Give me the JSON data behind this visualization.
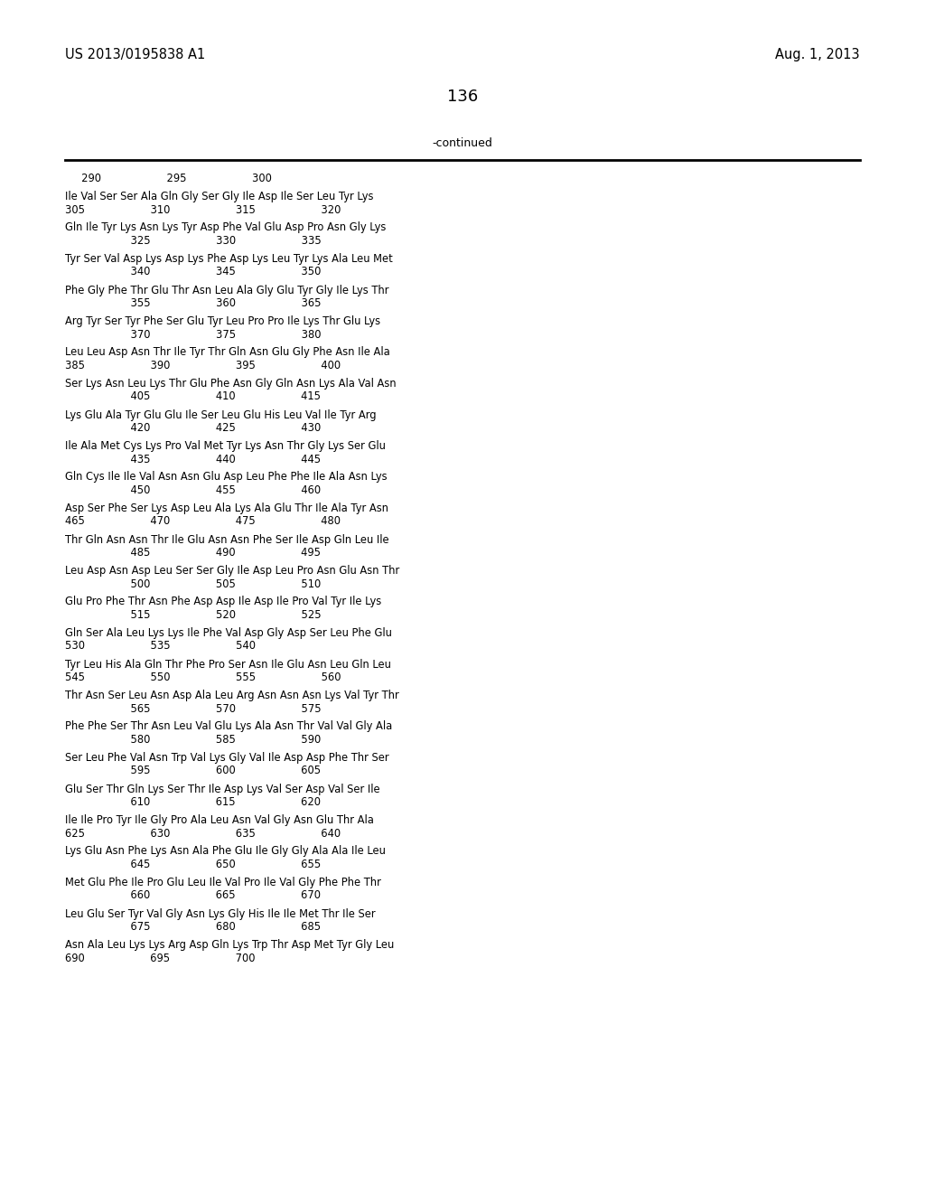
{
  "patent_number": "US 2013/0195838 A1",
  "date": "Aug. 1, 2013",
  "page_number": "136",
  "continued_label": "-continued",
  "background_color": "#ffffff",
  "text_color": "#000000",
  "lines": [
    [
      "ruler",
      "     290                    295                    300"
    ],
    [
      "blank",
      ""
    ],
    [
      "seq",
      "Ile Val Ser Ser Ala Gln Gly Ser Gly Ile Asp Ile Ser Leu Tyr Lys"
    ],
    [
      "num",
      "305                    310                    315                    320"
    ],
    [
      "blank",
      ""
    ],
    [
      "seq",
      "Gln Ile Tyr Lys Asn Lys Tyr Asp Phe Val Glu Asp Pro Asn Gly Lys"
    ],
    [
      "num",
      "                    325                    330                    335"
    ],
    [
      "blank",
      ""
    ],
    [
      "seq",
      "Tyr Ser Val Asp Lys Asp Lys Phe Asp Lys Leu Tyr Lys Ala Leu Met"
    ],
    [
      "num",
      "                    340                    345                    350"
    ],
    [
      "blank",
      ""
    ],
    [
      "seq",
      "Phe Gly Phe Thr Glu Thr Asn Leu Ala Gly Glu Tyr Gly Ile Lys Thr"
    ],
    [
      "num",
      "                    355                    360                    365"
    ],
    [
      "blank",
      ""
    ],
    [
      "seq",
      "Arg Tyr Ser Tyr Phe Ser Glu Tyr Leu Pro Pro Ile Lys Thr Glu Lys"
    ],
    [
      "num",
      "                    370                    375                    380"
    ],
    [
      "blank",
      ""
    ],
    [
      "seq",
      "Leu Leu Asp Asn Thr Ile Tyr Thr Gln Asn Glu Gly Phe Asn Ile Ala"
    ],
    [
      "num",
      "385                    390                    395                    400"
    ],
    [
      "blank",
      ""
    ],
    [
      "seq",
      "Ser Lys Asn Leu Lys Thr Glu Phe Asn Gly Gln Asn Lys Ala Val Asn"
    ],
    [
      "num",
      "                    405                    410                    415"
    ],
    [
      "blank",
      ""
    ],
    [
      "seq",
      "Lys Glu Ala Tyr Glu Glu Ile Ser Leu Glu His Leu Val Ile Tyr Arg"
    ],
    [
      "num",
      "                    420                    425                    430"
    ],
    [
      "blank",
      ""
    ],
    [
      "seq",
      "Ile Ala Met Cys Lys Pro Val Met Tyr Lys Asn Thr Gly Lys Ser Glu"
    ],
    [
      "num",
      "                    435                    440                    445"
    ],
    [
      "blank",
      ""
    ],
    [
      "seq",
      "Gln Cys Ile Ile Val Asn Asn Glu Asp Leu Phe Phe Ile Ala Asn Lys"
    ],
    [
      "num",
      "                    450                    455                    460"
    ],
    [
      "blank",
      ""
    ],
    [
      "seq",
      "Asp Ser Phe Ser Lys Asp Leu Ala Lys Ala Glu Thr Ile Ala Tyr Asn"
    ],
    [
      "num",
      "465                    470                    475                    480"
    ],
    [
      "blank",
      ""
    ],
    [
      "seq",
      "Thr Gln Asn Asn Thr Ile Glu Asn Asn Phe Ser Ile Asp Gln Leu Ile"
    ],
    [
      "num",
      "                    485                    490                    495"
    ],
    [
      "blank",
      ""
    ],
    [
      "seq",
      "Leu Asp Asn Asp Leu Ser Ser Gly Ile Asp Leu Pro Asn Glu Asn Thr"
    ],
    [
      "num",
      "                    500                    505                    510"
    ],
    [
      "blank",
      ""
    ],
    [
      "seq",
      "Glu Pro Phe Thr Asn Phe Asp Asp Ile Asp Ile Pro Val Tyr Ile Lys"
    ],
    [
      "num",
      "                    515                    520                    525"
    ],
    [
      "blank",
      ""
    ],
    [
      "seq",
      "Gln Ser Ala Leu Lys Lys Ile Phe Val Asp Gly Asp Ser Leu Phe Glu"
    ],
    [
      "num",
      "530                    535                    540"
    ],
    [
      "blank",
      ""
    ],
    [
      "seq",
      "Tyr Leu His Ala Gln Thr Phe Pro Ser Asn Ile Glu Asn Leu Gln Leu"
    ],
    [
      "num",
      "545                    550                    555                    560"
    ],
    [
      "blank",
      ""
    ],
    [
      "seq",
      "Thr Asn Ser Leu Asn Asp Ala Leu Arg Asn Asn Asn Lys Val Tyr Thr"
    ],
    [
      "num",
      "                    565                    570                    575"
    ],
    [
      "blank",
      ""
    ],
    [
      "seq",
      "Phe Phe Ser Thr Asn Leu Val Glu Lys Ala Asn Thr Val Val Gly Ala"
    ],
    [
      "num",
      "                    580                    585                    590"
    ],
    [
      "blank",
      ""
    ],
    [
      "seq",
      "Ser Leu Phe Val Asn Trp Val Lys Gly Val Ile Asp Asp Phe Thr Ser"
    ],
    [
      "num",
      "                    595                    600                    605"
    ],
    [
      "blank",
      ""
    ],
    [
      "seq",
      "Glu Ser Thr Gln Lys Ser Thr Ile Asp Lys Val Ser Asp Val Ser Ile"
    ],
    [
      "num",
      "                    610                    615                    620"
    ],
    [
      "blank",
      ""
    ],
    [
      "seq",
      "Ile Ile Pro Tyr Ile Gly Pro Ala Leu Asn Val Gly Asn Glu Thr Ala"
    ],
    [
      "num",
      "625                    630                    635                    640"
    ],
    [
      "blank",
      ""
    ],
    [
      "seq",
      "Lys Glu Asn Phe Lys Asn Ala Phe Glu Ile Gly Gly Ala Ala Ile Leu"
    ],
    [
      "num",
      "                    645                    650                    655"
    ],
    [
      "blank",
      ""
    ],
    [
      "seq",
      "Met Glu Phe Ile Pro Glu Leu Ile Val Pro Ile Val Gly Phe Phe Thr"
    ],
    [
      "num",
      "                    660                    665                    670"
    ],
    [
      "blank",
      ""
    ],
    [
      "seq",
      "Leu Glu Ser Tyr Val Gly Asn Lys Gly His Ile Ile Met Thr Ile Ser"
    ],
    [
      "num",
      "                    675                    680                    685"
    ],
    [
      "blank",
      ""
    ],
    [
      "seq",
      "Asn Ala Leu Lys Lys Arg Asp Gln Lys Trp Thr Asp Met Tyr Gly Leu"
    ],
    [
      "num",
      "690                    695                    700"
    ]
  ]
}
